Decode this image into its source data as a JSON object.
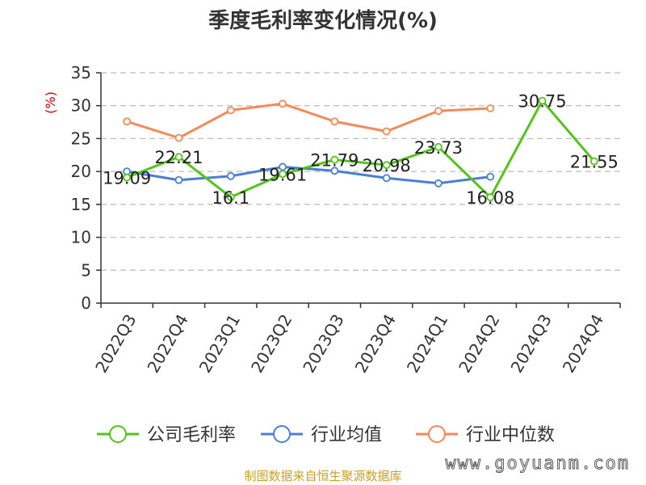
{
  "chart_data": {
    "type": "line",
    "title": "季度毛利率变化情况(%)",
    "ylabel": "(%)",
    "xlabel": "",
    "categories": [
      "2022Q3",
      "2022Q4",
      "2023Q1",
      "2023Q2",
      "2023Q3",
      "2023Q4",
      "2024Q1",
      "2024Q2",
      "2024Q3",
      "2024Q4"
    ],
    "ylim": [
      0,
      35
    ],
    "yticks": [
      0,
      5,
      10,
      15,
      20,
      25,
      30,
      35
    ],
    "grid": true,
    "legend_position": "bottom",
    "series": [
      {
        "name": "公司毛利率",
        "color": "#52c41a",
        "values": [
          19.09,
          22.21,
          16.1,
          19.61,
          21.79,
          20.98,
          23.73,
          16.08,
          30.75,
          21.55
        ],
        "labels": [
          "19.09",
          "22.21",
          "16.1",
          "19.61",
          "21.79",
          "20.98",
          "23.73",
          "16.08",
          "30.75",
          "21.55"
        ]
      },
      {
        "name": "行业均值",
        "color": "#4a7fd8",
        "values": [
          20.0,
          18.7,
          19.3,
          20.7,
          20.1,
          19.0,
          18.2,
          19.2,
          null,
          null
        ]
      },
      {
        "name": "行业中位数",
        "color": "#f5895a",
        "values": [
          27.6,
          25.1,
          29.3,
          30.3,
          27.6,
          26.1,
          29.2,
          29.6,
          null,
          null
        ]
      }
    ]
  },
  "colors": {
    "ylabel": "#cc0000",
    "source": "#c8a02a",
    "grid": "#bbbbbb",
    "axis": "#333333"
  },
  "footer": {
    "source": "制图数据来自恒生聚源数据库",
    "watermark": "www.goyuanm.com"
  }
}
